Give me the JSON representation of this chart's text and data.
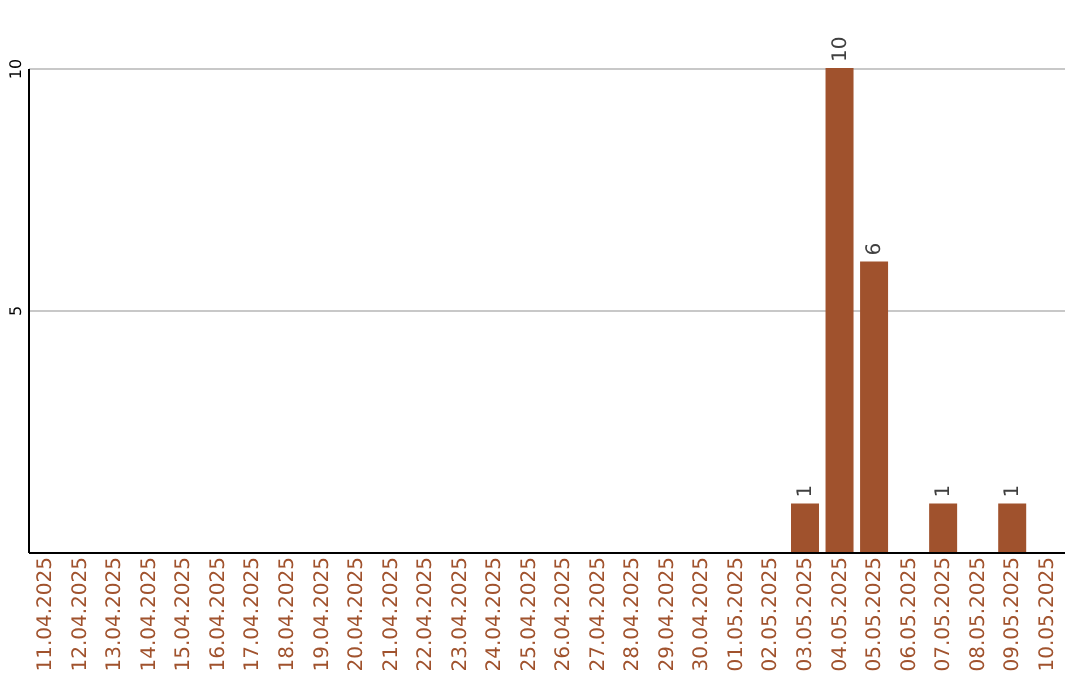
{
  "chart_data": {
    "type": "bar",
    "categories": [
      "11.04.2025",
      "12.04.2025",
      "13.04.2025",
      "14.04.2025",
      "15.04.2025",
      "16.04.2025",
      "17.04.2025",
      "18.04.2025",
      "19.04.2025",
      "20.04.2025",
      "21.04.2025",
      "22.04.2025",
      "23.04.2025",
      "24.04.2025",
      "25.04.2025",
      "26.04.2025",
      "27.04.2025",
      "28.04.2025",
      "29.04.2025",
      "30.04.2025",
      "01.05.2025",
      "02.05.2025",
      "03.05.2025",
      "04.05.2025",
      "05.05.2025",
      "06.05.2025",
      "07.05.2025",
      "08.05.2025",
      "09.05.2025",
      "10.05.2025"
    ],
    "values": [
      0,
      0,
      0,
      0,
      0,
      0,
      0,
      0,
      0,
      0,
      0,
      0,
      0,
      0,
      0,
      0,
      0,
      0,
      0,
      0,
      0,
      0,
      1,
      10,
      6,
      0,
      1,
      0,
      1,
      0
    ],
    "value_labels": [
      null,
      null,
      null,
      null,
      null,
      null,
      null,
      null,
      null,
      null,
      null,
      null,
      null,
      null,
      null,
      null,
      null,
      null,
      null,
      null,
      null,
      null,
      "1",
      "10",
      "6",
      null,
      "1",
      null,
      "1",
      null
    ],
    "color": "#a0522d",
    "ylim": [
      0,
      10
    ],
    "yticks": [
      5,
      10
    ],
    "grid": "y"
  }
}
